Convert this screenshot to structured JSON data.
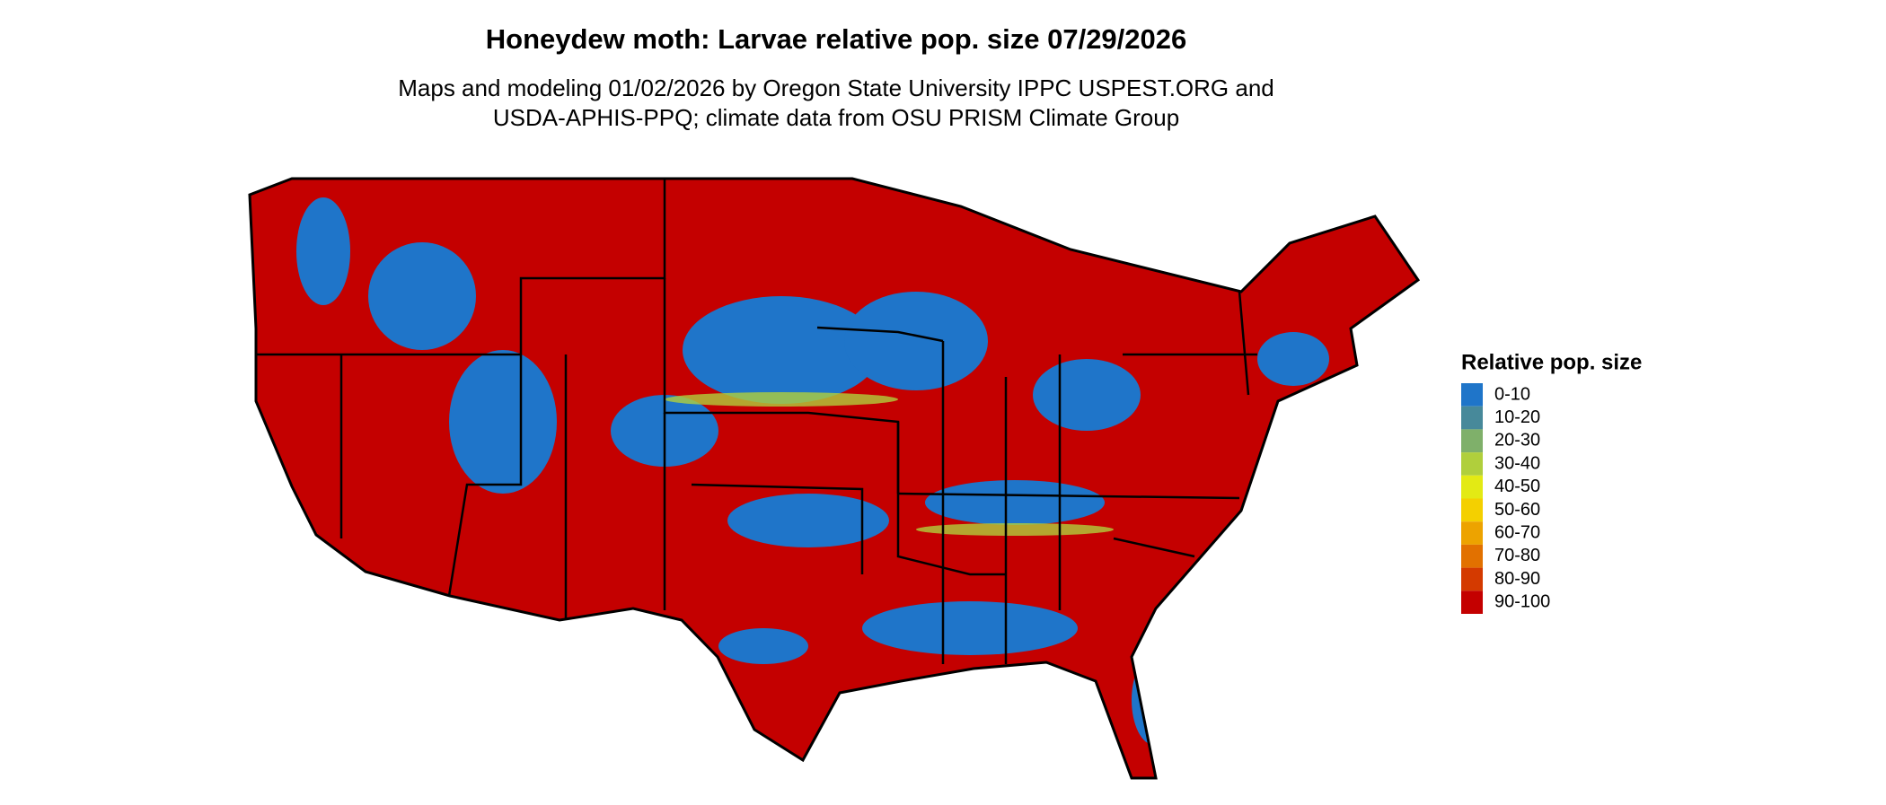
{
  "title": "Honeydew moth: Larvae relative pop. size 07/29/2026",
  "subtitle": [
    "Maps and modeling 01/02/2026 by Oregon State University IPPC USPEST.ORG and",
    "USDA-APHIS-PPQ; climate data from OSU PRISM Climate Group"
  ],
  "legend": {
    "title": "Relative pop. size",
    "items": [
      {
        "label": "0-10",
        "color": "#1f75c9"
      },
      {
        "label": "10-20",
        "color": "#47899a"
      },
      {
        "label": "20-30",
        "color": "#7fb06a"
      },
      {
        "label": "30-40",
        "color": "#b0cf3c"
      },
      {
        "label": "40-50",
        "color": "#e3ea14"
      },
      {
        "label": "50-60",
        "color": "#f4d000"
      },
      {
        "label": "60-70",
        "color": "#eda300"
      },
      {
        "label": "70-80",
        "color": "#e27100"
      },
      {
        "label": "80-90",
        "color": "#d43a00"
      },
      {
        "label": "90-100",
        "color": "#c40000"
      }
    ]
  }
}
